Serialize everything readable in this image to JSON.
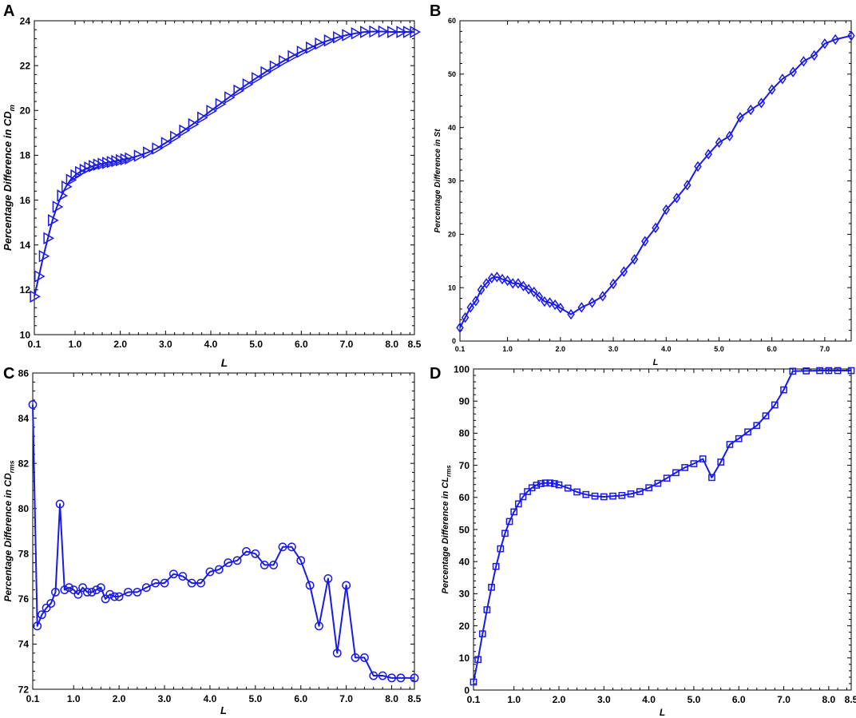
{
  "colors": {
    "series": "#1a1ae6",
    "axis": "#000000",
    "background": "#ffffff"
  },
  "chart_data": [
    {
      "panel": "A",
      "type": "line",
      "marker": "triangle-right",
      "xlabel": "L",
      "ylabel_main": "Percentage Difference in CD",
      "ylabel_sub": "m",
      "xlim": [
        0.1,
        8.5
      ],
      "ylim": [
        10,
        24
      ],
      "xticks": [
        0.1,
        1.0,
        2.0,
        3.0,
        4.0,
        5.0,
        6.0,
        7.0,
        8.0,
        8.5
      ],
      "xtick_labels": [
        "0.1",
        "1.0",
        "2.0",
        "3.0",
        "4.0",
        "5.0",
        "6.0",
        "7.0",
        "8.0",
        "8.5"
      ],
      "yticks": [
        10,
        12,
        14,
        16,
        18,
        20,
        22,
        24
      ],
      "ytick_labels": [
        "10",
        "12",
        "14",
        "16",
        "18",
        "20",
        "22",
        "24"
      ],
      "x": [
        0.1,
        0.2,
        0.3,
        0.4,
        0.5,
        0.6,
        0.7,
        0.8,
        0.9,
        1.0,
        1.1,
        1.2,
        1.3,
        1.4,
        1.5,
        1.6,
        1.7,
        1.8,
        1.9,
        2.0,
        2.1,
        2.2,
        2.4,
        2.6,
        2.8,
        3.0,
        3.2,
        3.4,
        3.6,
        3.8,
        4.0,
        4.2,
        4.4,
        4.6,
        4.8,
        5.0,
        5.2,
        5.4,
        5.6,
        5.8,
        6.0,
        6.2,
        6.4,
        6.6,
        6.8,
        7.0,
        7.2,
        7.4,
        7.6,
        7.8,
        8.0,
        8.2,
        8.35,
        8.5
      ],
      "y": [
        11.7,
        12.6,
        13.5,
        14.3,
        15.1,
        15.7,
        16.2,
        16.6,
        16.9,
        17.1,
        17.25,
        17.35,
        17.45,
        17.52,
        17.58,
        17.62,
        17.66,
        17.7,
        17.74,
        17.78,
        17.82,
        17.86,
        17.98,
        18.12,
        18.3,
        18.55,
        18.82,
        19.1,
        19.38,
        19.68,
        19.98,
        20.28,
        20.58,
        20.88,
        21.16,
        21.44,
        21.7,
        21.96,
        22.2,
        22.42,
        22.62,
        22.8,
        22.98,
        23.12,
        23.26,
        23.36,
        23.44,
        23.5,
        23.52,
        23.52,
        23.5,
        23.5,
        23.5,
        23.5
      ]
    },
    {
      "panel": "B",
      "type": "line",
      "marker": "diamond",
      "xlabel": "L",
      "ylabel_main": "Percentage Difference in St",
      "ylabel_sub": "",
      "xlim": [
        0.1,
        7.5
      ],
      "ylim": [
        0,
        60
      ],
      "xticks": [
        0.1,
        1.0,
        2.0,
        3.0,
        4.0,
        5.0,
        6.0,
        7.0
      ],
      "xtick_labels": [
        "0.1",
        "1.0",
        "2.0",
        "3.0",
        "4.0",
        "5.0",
        "6.0",
        "7.0"
      ],
      "yticks": [
        0,
        10,
        20,
        30,
        40,
        50,
        60
      ],
      "ytick_labels": [
        "0",
        "10",
        "20",
        "30",
        "40",
        "50",
        "60"
      ],
      "x": [
        0.1,
        0.2,
        0.3,
        0.4,
        0.5,
        0.6,
        0.7,
        0.8,
        0.9,
        1.0,
        1.1,
        1.2,
        1.3,
        1.4,
        1.5,
        1.6,
        1.7,
        1.8,
        1.9,
        2.0,
        2.2,
        2.4,
        2.6,
        2.8,
        3.0,
        3.2,
        3.4,
        3.6,
        3.8,
        4.0,
        4.2,
        4.4,
        4.6,
        4.8,
        5.0,
        5.2,
        5.4,
        5.6,
        5.8,
        6.0,
        6.2,
        6.4,
        6.6,
        6.8,
        7.0,
        7.2,
        7.5
      ],
      "y": [
        2.5,
        4.4,
        6.3,
        7.5,
        9.6,
        10.8,
        11.8,
        12.0,
        11.6,
        11.3,
        10.8,
        10.8,
        10.3,
        9.7,
        9.2,
        8.3,
        7.4,
        7.2,
        6.8,
        6.2,
        5.0,
        6.3,
        7.2,
        8.4,
        10.7,
        13.0,
        15.3,
        18.7,
        21.2,
        24.6,
        26.8,
        29.2,
        32.7,
        35.0,
        37.2,
        38.4,
        41.9,
        43.3,
        44.6,
        47.1,
        49.1,
        50.4,
        52.4,
        53.5,
        55.7,
        56.5,
        57.2
      ]
    },
    {
      "panel": "C",
      "type": "line",
      "marker": "circle",
      "xlabel": "L",
      "ylabel_main": "Percentage Difference in CD",
      "ylabel_sub": "rms",
      "xlim": [
        0.1,
        8.5
      ],
      "ylim": [
        72,
        86
      ],
      "xticks": [
        0.1,
        1.0,
        2.0,
        3.0,
        4.0,
        5.0,
        6.0,
        7.0,
        8.0,
        8.5
      ],
      "xtick_labels": [
        "0.1",
        "1.0",
        "2.0",
        "3.0",
        "4.0",
        "5.0",
        "6.0",
        "7.0",
        "8.0",
        "8.5"
      ],
      "yticks": [
        72,
        74,
        76,
        78,
        80,
        82,
        84,
        86
      ],
      "ytick_labels": [
        "72",
        "74",
        "76",
        "78",
        "80",
        "82",
        "84",
        "86"
      ],
      "x": [
        0.1,
        0.2,
        0.3,
        0.4,
        0.5,
        0.6,
        0.7,
        0.8,
        0.9,
        1.0,
        1.1,
        1.2,
        1.3,
        1.4,
        1.5,
        1.6,
        1.7,
        1.8,
        1.9,
        2.0,
        2.2,
        2.4,
        2.6,
        2.8,
        3.0,
        3.2,
        3.4,
        3.6,
        3.8,
        4.0,
        4.2,
        4.4,
        4.6,
        4.8,
        5.0,
        5.2,
        5.4,
        5.6,
        5.8,
        6.0,
        6.2,
        6.4,
        6.6,
        6.8,
        7.0,
        7.2,
        7.4,
        7.6,
        7.8,
        8.0,
        8.2,
        8.5
      ],
      "y": [
        84.6,
        74.8,
        75.3,
        75.6,
        75.8,
        76.3,
        80.2,
        76.4,
        76.5,
        76.4,
        76.2,
        76.5,
        76.3,
        76.3,
        76.4,
        76.5,
        76.0,
        76.2,
        76.1,
        76.1,
        76.3,
        76.3,
        76.5,
        76.7,
        76.7,
        77.1,
        77.0,
        76.7,
        76.7,
        77.2,
        77.3,
        77.6,
        77.7,
        78.1,
        78.0,
        77.5,
        77.5,
        78.3,
        78.3,
        77.7,
        76.6,
        74.8,
        76.9,
        73.6,
        76.6,
        73.4,
        73.4,
        72.6,
        72.6,
        72.5,
        72.5,
        72.5
      ]
    },
    {
      "panel": "D",
      "type": "line",
      "marker": "square",
      "xlabel": "L",
      "ylabel_main": "Percentage Difference in CL",
      "ylabel_sub": "rms",
      "xlim": [
        0.1,
        8.5
      ],
      "ylim": [
        0,
        100
      ],
      "xticks": [
        0.1,
        1.0,
        2.0,
        3.0,
        4.0,
        5.0,
        6.0,
        7.0,
        8.0,
        8.5
      ],
      "xtick_labels": [
        "0.1",
        "1.0",
        "2.0",
        "3.0",
        "4.0",
        "5.0",
        "6.0",
        "7.0",
        "8.0",
        "8.5"
      ],
      "yticks": [
        0,
        10,
        20,
        30,
        40,
        50,
        60,
        70,
        80,
        90,
        100
      ],
      "ytick_labels": [
        "0",
        "10",
        "20",
        "30",
        "40",
        "50",
        "60",
        "70",
        "80",
        "90",
        "100"
      ],
      "x": [
        0.1,
        0.2,
        0.3,
        0.4,
        0.5,
        0.6,
        0.7,
        0.8,
        0.9,
        1.0,
        1.1,
        1.2,
        1.3,
        1.4,
        1.5,
        1.6,
        1.7,
        1.8,
        1.9,
        2.0,
        2.2,
        2.4,
        2.6,
        2.8,
        3.0,
        3.2,
        3.4,
        3.6,
        3.8,
        4.0,
        4.2,
        4.4,
        4.6,
        4.8,
        5.0,
        5.2,
        5.4,
        5.6,
        5.8,
        6.0,
        6.2,
        6.4,
        6.6,
        6.8,
        7.0,
        7.2,
        7.5,
        7.8,
        8.0,
        8.2,
        8.5
      ],
      "y": [
        2.5,
        9.5,
        17.5,
        25.0,
        32.0,
        38.5,
        44.0,
        48.8,
        52.5,
        55.5,
        58.0,
        60.2,
        61.8,
        63.0,
        63.8,
        64.3,
        64.5,
        64.5,
        64.3,
        63.9,
        62.9,
        61.7,
        60.9,
        60.4,
        60.2,
        60.4,
        60.6,
        61.1,
        61.8,
        63.0,
        64.4,
        66.0,
        67.7,
        69.3,
        70.5,
        72.0,
        66.2,
        71.0,
        76.5,
        78.3,
        80.4,
        82.4,
        85.4,
        88.8,
        93.5,
        99.3,
        99.4,
        99.5,
        99.5,
        99.5,
        99.5
      ]
    }
  ]
}
